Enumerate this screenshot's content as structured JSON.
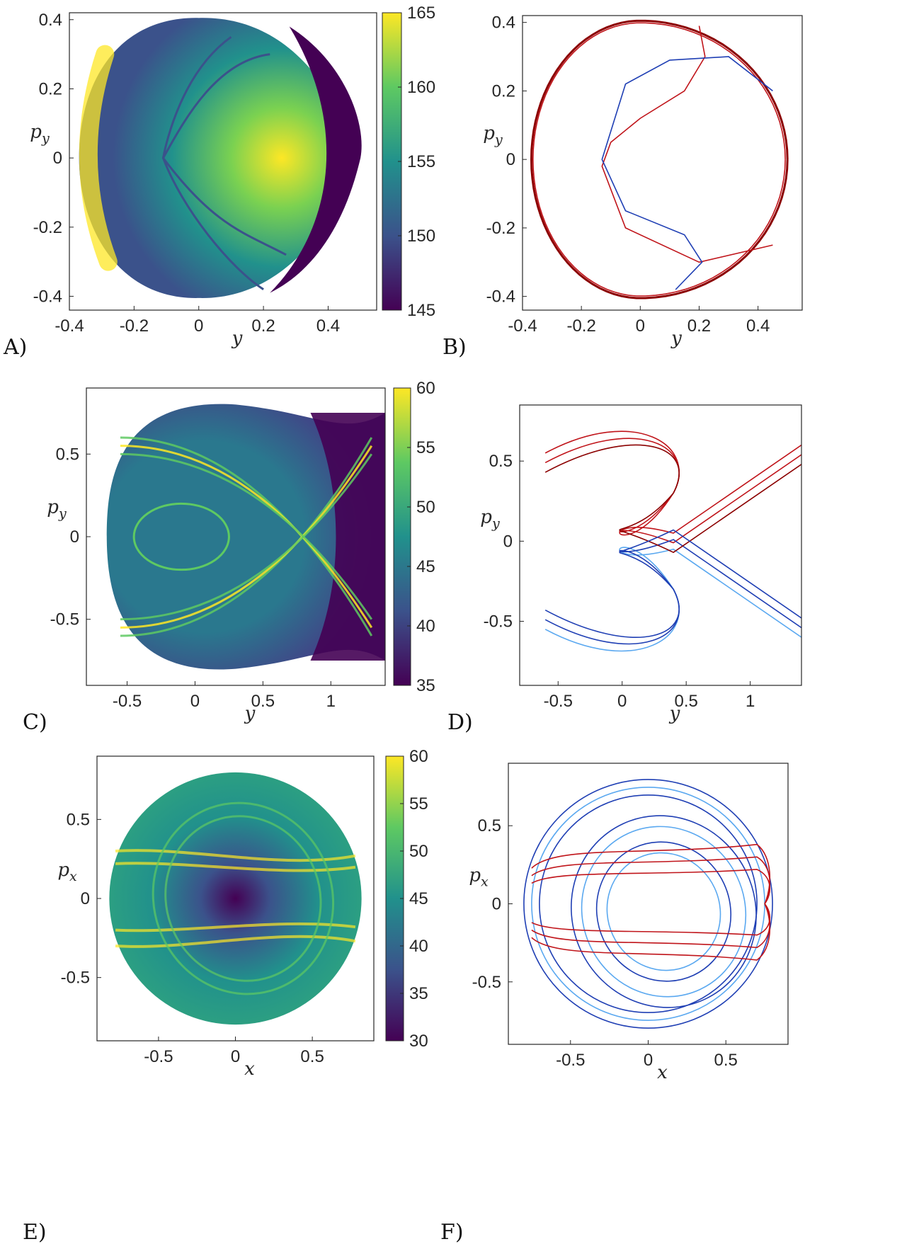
{
  "colors": {
    "viridis": [
      "#440154",
      "#3b528b",
      "#21918c",
      "#5ec962",
      "#fde725"
    ],
    "red": "#c0141a",
    "dark_red": "#8b0000",
    "light_red": "#f06a6a",
    "blue": "#1f3fb4",
    "light_blue": "#5aa8f0"
  },
  "chart_data": [
    {
      "panel": "A)",
      "type": "heatmap",
      "xlabel": "y",
      "ylabel": "p_y",
      "xlim": [
        -0.4,
        0.55
      ],
      "ylim": [
        -0.44,
        0.42
      ],
      "xticks": [
        "-0.4",
        "-0.2",
        "0",
        "0.2",
        "0.4"
      ],
      "yticks": [
        "0.4",
        "0.2",
        "0",
        "-0.2",
        "-0.4"
      ],
      "colorbar": {
        "min": 145,
        "max": 165,
        "ticks": [
          "165",
          "160",
          "155",
          "150",
          "145"
        ]
      }
    },
    {
      "panel": "B)",
      "type": "line",
      "xlabel": "y",
      "ylabel": "p_y",
      "xlim": [
        -0.4,
        0.55
      ],
      "ylim": [
        -0.44,
        0.42
      ],
      "xticks": [
        "-0.4",
        "-0.2",
        "0",
        "0.2",
        "0.4"
      ],
      "yticks": [
        "0.4",
        "0.2",
        "0",
        "-0.2",
        "-0.4"
      ]
    },
    {
      "panel": "C)",
      "type": "heatmap",
      "xlabel": "y",
      "ylabel": "p_y",
      "xlim": [
        -0.8,
        1.4
      ],
      "ylim": [
        -0.9,
        0.9
      ],
      "xticks": [
        "-0.5",
        "0",
        "0.5",
        "1"
      ],
      "yticks": [
        "0.5",
        "0",
        "-0.5"
      ],
      "colorbar": {
        "min": 35,
        "max": 60,
        "ticks": [
          "60",
          "55",
          "50",
          "45",
          "40",
          "35"
        ]
      }
    },
    {
      "panel": "D)",
      "type": "line",
      "xlabel": "y",
      "ylabel": "p_y",
      "xlim": [
        -0.8,
        1.4
      ],
      "ylim": [
        -0.9,
        0.85
      ],
      "xticks": [
        "-0.5",
        "0",
        "0.5",
        "1"
      ],
      "yticks": [
        "0.5",
        "0",
        "-0.5"
      ]
    },
    {
      "panel": "E)",
      "type": "heatmap",
      "xlabel": "x",
      "ylabel": "p_x",
      "xlim": [
        -0.9,
        0.9
      ],
      "ylim": [
        -0.9,
        0.9
      ],
      "xticks": [
        "-0.5",
        "0",
        "0.5"
      ],
      "yticks": [
        "0.5",
        "0",
        "-0.5"
      ],
      "colorbar": {
        "min": 30,
        "max": 60,
        "ticks": [
          "60",
          "55",
          "50",
          "45",
          "40",
          "35",
          "30"
        ]
      }
    },
    {
      "panel": "F)",
      "type": "line",
      "xlabel": "x",
      "ylabel": "p_x",
      "xlim": [
        -0.9,
        0.9
      ],
      "ylim": [
        -0.9,
        0.9
      ],
      "xticks": [
        "-0.5",
        "0",
        "0.5"
      ],
      "yticks": [
        "0.5",
        "0",
        "-0.5"
      ]
    }
  ]
}
